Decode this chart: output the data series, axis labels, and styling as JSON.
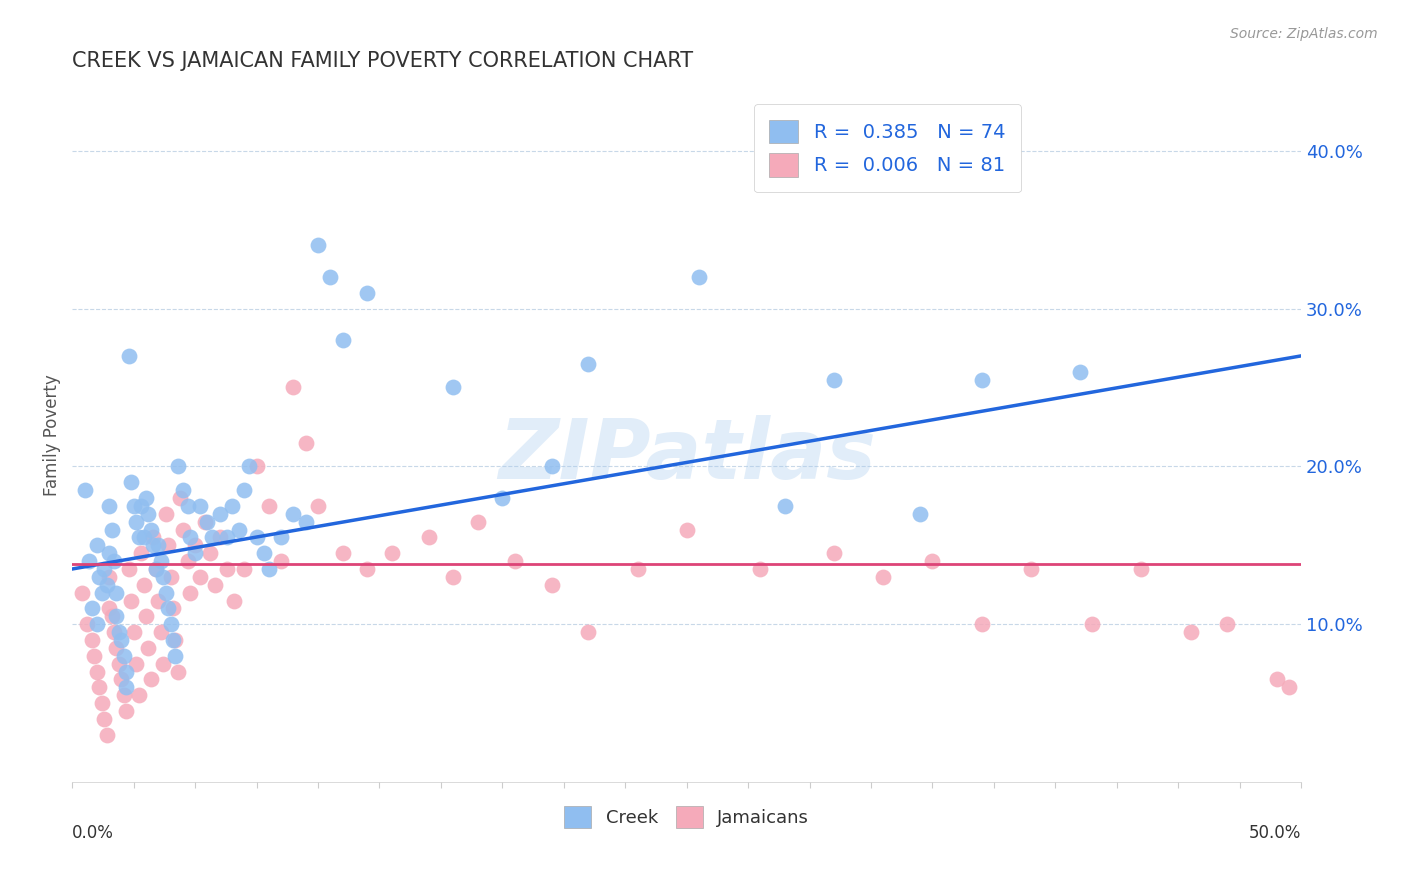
{
  "title": "CREEK VS JAMAICAN FAMILY POVERTY CORRELATION CHART",
  "source": "Source: ZipAtlas.com",
  "ylabel": "Family Poverty",
  "xlim": [
    0.0,
    0.5
  ],
  "ylim": [
    0.0,
    0.44
  ],
  "creek_R": 0.385,
  "creek_N": 74,
  "jamaican_R": 0.006,
  "jamaican_N": 81,
  "creek_color": "#90BEF0",
  "jamaican_color": "#F5AABA",
  "creek_line_color": "#2266DD",
  "jamaican_line_color": "#DD4477",
  "title_color": "#333333",
  "source_color": "#999999",
  "label_color": "#2266DD",
  "grid_color": "#C8D8E8",
  "creek_line_start_y": 0.135,
  "creek_line_end_y": 0.27,
  "jamaican_line_y": 0.138,
  "creek_x": [
    0.005,
    0.007,
    0.008,
    0.01,
    0.01,
    0.011,
    0.012,
    0.013,
    0.014,
    0.015,
    0.015,
    0.016,
    0.017,
    0.018,
    0.018,
    0.019,
    0.02,
    0.021,
    0.022,
    0.022,
    0.023,
    0.024,
    0.025,
    0.026,
    0.027,
    0.028,
    0.029,
    0.03,
    0.031,
    0.032,
    0.033,
    0.034,
    0.035,
    0.036,
    0.037,
    0.038,
    0.039,
    0.04,
    0.041,
    0.042,
    0.043,
    0.045,
    0.047,
    0.048,
    0.05,
    0.052,
    0.055,
    0.057,
    0.06,
    0.063,
    0.065,
    0.068,
    0.07,
    0.072,
    0.075,
    0.078,
    0.08,
    0.085,
    0.09,
    0.095,
    0.1,
    0.105,
    0.11,
    0.12,
    0.155,
    0.175,
    0.195,
    0.21,
    0.255,
    0.29,
    0.31,
    0.345,
    0.37,
    0.41
  ],
  "creek_y": [
    0.185,
    0.14,
    0.11,
    0.15,
    0.1,
    0.13,
    0.12,
    0.135,
    0.125,
    0.145,
    0.175,
    0.16,
    0.14,
    0.12,
    0.105,
    0.095,
    0.09,
    0.08,
    0.07,
    0.06,
    0.27,
    0.19,
    0.175,
    0.165,
    0.155,
    0.175,
    0.155,
    0.18,
    0.17,
    0.16,
    0.15,
    0.135,
    0.15,
    0.14,
    0.13,
    0.12,
    0.11,
    0.1,
    0.09,
    0.08,
    0.2,
    0.185,
    0.175,
    0.155,
    0.145,
    0.175,
    0.165,
    0.155,
    0.17,
    0.155,
    0.175,
    0.16,
    0.185,
    0.2,
    0.155,
    0.145,
    0.135,
    0.155,
    0.17,
    0.165,
    0.34,
    0.32,
    0.28,
    0.31,
    0.25,
    0.18,
    0.2,
    0.265,
    0.32,
    0.175,
    0.255,
    0.17,
    0.255,
    0.26
  ],
  "jamaican_x": [
    0.004,
    0.006,
    0.008,
    0.009,
    0.01,
    0.011,
    0.012,
    0.013,
    0.014,
    0.015,
    0.015,
    0.016,
    0.017,
    0.018,
    0.019,
    0.02,
    0.021,
    0.022,
    0.023,
    0.024,
    0.025,
    0.026,
    0.027,
    0.028,
    0.029,
    0.03,
    0.031,
    0.032,
    0.033,
    0.034,
    0.035,
    0.036,
    0.037,
    0.038,
    0.039,
    0.04,
    0.041,
    0.042,
    0.043,
    0.044,
    0.045,
    0.047,
    0.048,
    0.05,
    0.052,
    0.054,
    0.056,
    0.058,
    0.06,
    0.063,
    0.066,
    0.07,
    0.075,
    0.08,
    0.085,
    0.09,
    0.095,
    0.1,
    0.11,
    0.12,
    0.13,
    0.145,
    0.155,
    0.165,
    0.18,
    0.195,
    0.21,
    0.23,
    0.25,
    0.28,
    0.31,
    0.33,
    0.35,
    0.37,
    0.39,
    0.415,
    0.435,
    0.455,
    0.47,
    0.49,
    0.495
  ],
  "jamaican_y": [
    0.12,
    0.1,
    0.09,
    0.08,
    0.07,
    0.06,
    0.05,
    0.04,
    0.03,
    0.11,
    0.13,
    0.105,
    0.095,
    0.085,
    0.075,
    0.065,
    0.055,
    0.045,
    0.135,
    0.115,
    0.095,
    0.075,
    0.055,
    0.145,
    0.125,
    0.105,
    0.085,
    0.065,
    0.155,
    0.135,
    0.115,
    0.095,
    0.075,
    0.17,
    0.15,
    0.13,
    0.11,
    0.09,
    0.07,
    0.18,
    0.16,
    0.14,
    0.12,
    0.15,
    0.13,
    0.165,
    0.145,
    0.125,
    0.155,
    0.135,
    0.115,
    0.135,
    0.2,
    0.175,
    0.14,
    0.25,
    0.215,
    0.175,
    0.145,
    0.135,
    0.145,
    0.155,
    0.13,
    0.165,
    0.14,
    0.125,
    0.095,
    0.135,
    0.16,
    0.135,
    0.145,
    0.13,
    0.14,
    0.1,
    0.135,
    0.1,
    0.135,
    0.095,
    0.1,
    0.065,
    0.06
  ]
}
